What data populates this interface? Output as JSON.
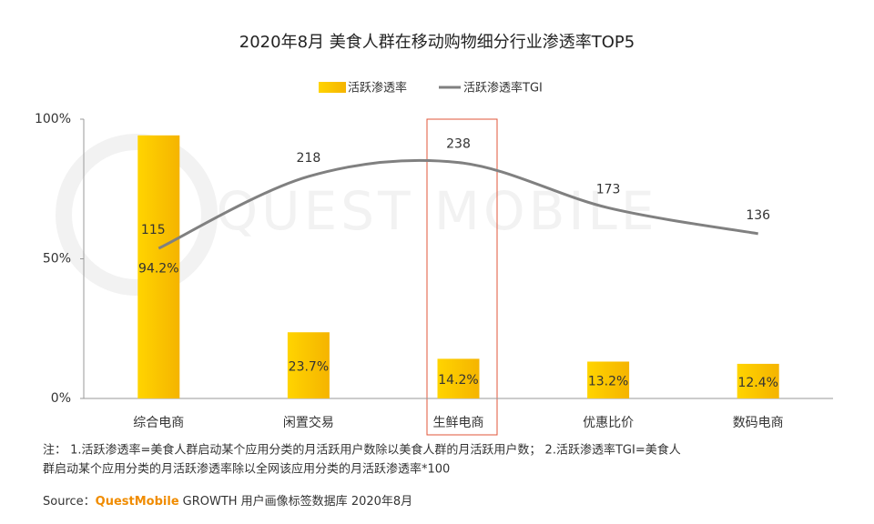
{
  "chart_data": {
    "type": "bar-line",
    "title": "2020年8月 美食人群在移动购物细分行业渗透率TOP5",
    "watermark": "QUEST MOBILE",
    "categories": [
      "综合电商",
      "闲置交易",
      "生鲜电商",
      "优惠比价",
      "数码电商"
    ],
    "series": [
      {
        "name": "活跃渗透率",
        "type": "bar",
        "color": "#ffc000",
        "values": [
          94.2,
          23.7,
          14.2,
          13.2,
          12.4
        ],
        "value_labels": [
          "94.2%",
          "23.7%",
          "14.2%",
          "13.2%",
          "12.4%"
        ]
      },
      {
        "name": "活跃渗透率TGI",
        "type": "line",
        "axis": "y2",
        "color": "#808080",
        "values": [
          115,
          218,
          238,
          173,
          136
        ]
      }
    ],
    "ylim": [
      0,
      100
    ],
    "yticks": [
      {
        "value": 0,
        "label": "0%"
      },
      {
        "value": 50,
        "label": "50%"
      },
      {
        "value": 100,
        "label": "100%"
      }
    ],
    "y2lim": [
      -100,
      300
    ],
    "note": [
      "注： 1.活跃渗透率=美食人群启动某个应用分类的月活跃用户数除以美食人群的月活跃用户数； 2.活跃渗透率TGI=美食人",
      "群启动某个应用分类的月活跃渗透率除以全网该应用分类的月活跃渗透率*100"
    ],
    "source": {
      "label": "Source：",
      "brand": "QuestMobile",
      "text": "GROWTH 用户画像标签数据库 2020年8月"
    }
  }
}
